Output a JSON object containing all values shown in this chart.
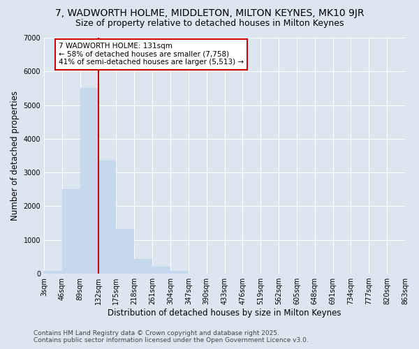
{
  "title_line1": "7, WADWORTH HOLME, MIDDLETON, MILTON KEYNES, MK10 9JR",
  "title_line2": "Size of property relative to detached houses in Milton Keynes",
  "xlabel": "Distribution of detached houses by size in Milton Keynes",
  "ylabel": "Number of detached properties",
  "bins": [
    "3sqm",
    "46sqm",
    "89sqm",
    "132sqm",
    "175sqm",
    "218sqm",
    "261sqm",
    "304sqm",
    "347sqm",
    "390sqm",
    "433sqm",
    "476sqm",
    "519sqm",
    "562sqm",
    "605sqm",
    "648sqm",
    "691sqm",
    "734sqm",
    "777sqm",
    "820sqm",
    "863sqm"
  ],
  "values": [
    90,
    2500,
    5500,
    3350,
    1330,
    430,
    200,
    90,
    10,
    0,
    0,
    0,
    0,
    0,
    0,
    0,
    0,
    0,
    0,
    0
  ],
  "bar_color": "#c5d8ee",
  "bar_edge_color": "#c5d8ee",
  "line_color": "#cc0000",
  "annotation_text": "7 WADWORTH HOLME: 131sqm\n← 58% of detached houses are smaller (7,758)\n41% of semi-detached houses are larger (5,513) →",
  "annotation_box_color": "#ffffff",
  "annotation_box_edge": "#cc0000",
  "background_color": "#dce6f1",
  "plot_bg_color": "#dce6f1",
  "ylim": [
    0,
    7000
  ],
  "yticks": [
    0,
    1000,
    2000,
    3000,
    4000,
    5000,
    6000,
    7000
  ],
  "footer_line1": "Contains HM Land Registry data © Crown copyright and database right 2025.",
  "footer_line2": "Contains public sector information licensed under the Open Government Licence v3.0.",
  "title_fontsize": 10,
  "subtitle_fontsize": 9,
  "axis_label_fontsize": 8.5,
  "tick_fontsize": 7,
  "annotation_fontsize": 7.5,
  "footer_fontsize": 6.5
}
